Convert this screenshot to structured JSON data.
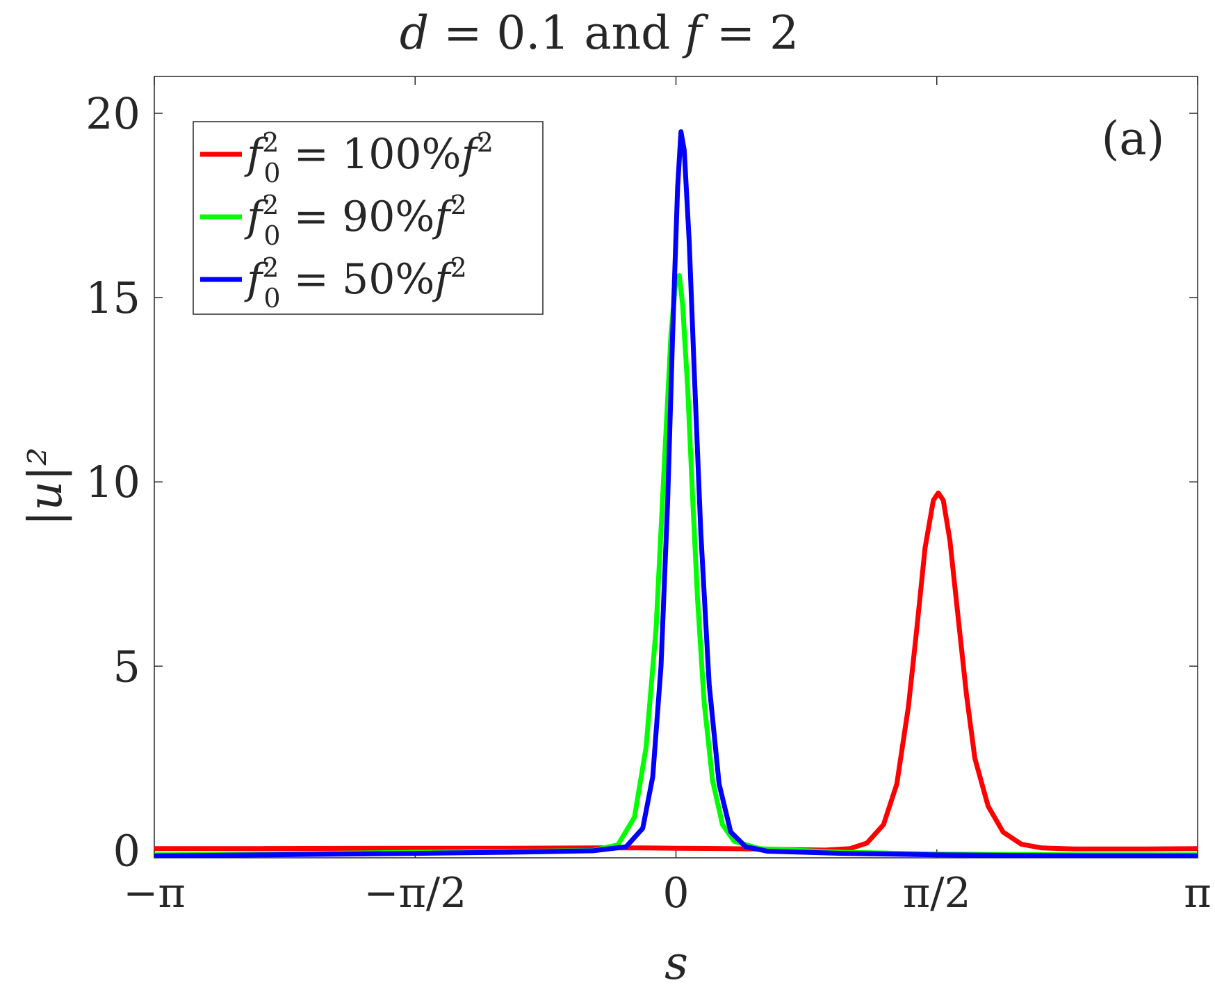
{
  "chart_data": {
    "type": "line",
    "title": "d = 0.1 and f = 2",
    "title_parts": {
      "var_d": "d",
      "eq1": " = 0.1 and ",
      "var_f": "f",
      "eq2": " = 2"
    },
    "xlabel": "s",
    "ylabel": "|u|²",
    "panel_label": "(a)",
    "xlim": [
      -3.14159,
      3.14159
    ],
    "ylim": [
      -0.2,
      21
    ],
    "x_ticks": [
      {
        "value": -3.14159,
        "label": "−π"
      },
      {
        "value": -1.5708,
        "label": "−π/2"
      },
      {
        "value": 0,
        "label": "0"
      },
      {
        "value": 1.5708,
        "label": "π/2"
      },
      {
        "value": 3.14159,
        "label": "π"
      }
    ],
    "y_ticks": [
      {
        "value": 0,
        "label": "0"
      },
      {
        "value": 5,
        "label": "5"
      },
      {
        "value": 10,
        "label": "10"
      },
      {
        "value": 15,
        "label": "15"
      },
      {
        "value": 20,
        "label": "20"
      }
    ],
    "grid": false,
    "legend_position": "top-left",
    "series": [
      {
        "name": "f₀² = 100%f²",
        "legend": {
          "pct": "100%"
        },
        "color": "#ff0000",
        "x": [
          -3.1416,
          -2.5,
          -1.5708,
          -1.0,
          -0.5,
          -0.2,
          0.0,
          0.3,
          0.6,
          0.9,
          1.05,
          1.15,
          1.25,
          1.33,
          1.4,
          1.45,
          1.5,
          1.55,
          1.58,
          1.61,
          1.65,
          1.7,
          1.75,
          1.8,
          1.88,
          1.97,
          2.08,
          2.2,
          2.4,
          2.8,
          3.1416
        ],
        "y": [
          0.05,
          0.05,
          0.06,
          0.06,
          0.07,
          0.07,
          0.06,
          0.05,
          0.03,
          0.01,
          0.05,
          0.2,
          0.7,
          1.8,
          3.9,
          6.0,
          8.2,
          9.5,
          9.7,
          9.5,
          8.4,
          6.3,
          4.2,
          2.5,
          1.2,
          0.5,
          0.17,
          0.07,
          0.04,
          0.04,
          0.05
        ]
      },
      {
        "name": "f₀² = 90%f²",
        "legend": {
          "pct": "90%"
        },
        "color": "#00ff00",
        "x": [
          -3.1416,
          -2.5,
          -1.5708,
          -1.0,
          -0.5,
          -0.35,
          -0.25,
          -0.18,
          -0.12,
          -0.07,
          -0.03,
          0.0,
          0.02,
          0.04,
          0.07,
          0.1,
          0.13,
          0.17,
          0.22,
          0.28,
          0.35,
          0.5,
          1.0,
          1.5708,
          2.5,
          3.1416
        ],
        "y": [
          -0.12,
          -0.1,
          -0.05,
          -0.03,
          0.0,
          0.15,
          0.9,
          2.8,
          6.0,
          10.5,
          14.0,
          15.5,
          15.6,
          14.8,
          12.6,
          9.6,
          6.8,
          4.0,
          1.9,
          0.7,
          0.25,
          0.05,
          -0.05,
          -0.1,
          -0.12,
          -0.12
        ]
      },
      {
        "name": "f₀² = 50%f²",
        "legend": {
          "pct": "50%"
        },
        "color": "#0000ff",
        "x": [
          -3.1416,
          -2.5,
          -1.5708,
          -1.0,
          -0.5,
          -0.3,
          -0.2,
          -0.14,
          -0.09,
          -0.05,
          -0.02,
          0.01,
          0.03,
          0.05,
          0.08,
          0.11,
          0.15,
          0.2,
          0.26,
          0.33,
          0.42,
          0.55,
          1.0,
          1.5708,
          2.5,
          3.1416
        ],
        "y": [
          -0.15,
          -0.12,
          -0.08,
          -0.05,
          -0.01,
          0.1,
          0.6,
          2.0,
          5.0,
          9.5,
          14.0,
          18.0,
          19.5,
          19.0,
          16.5,
          13.0,
          8.6,
          4.5,
          1.8,
          0.5,
          0.1,
          -0.02,
          -0.08,
          -0.12,
          -0.15,
          -0.15
        ]
      }
    ]
  }
}
